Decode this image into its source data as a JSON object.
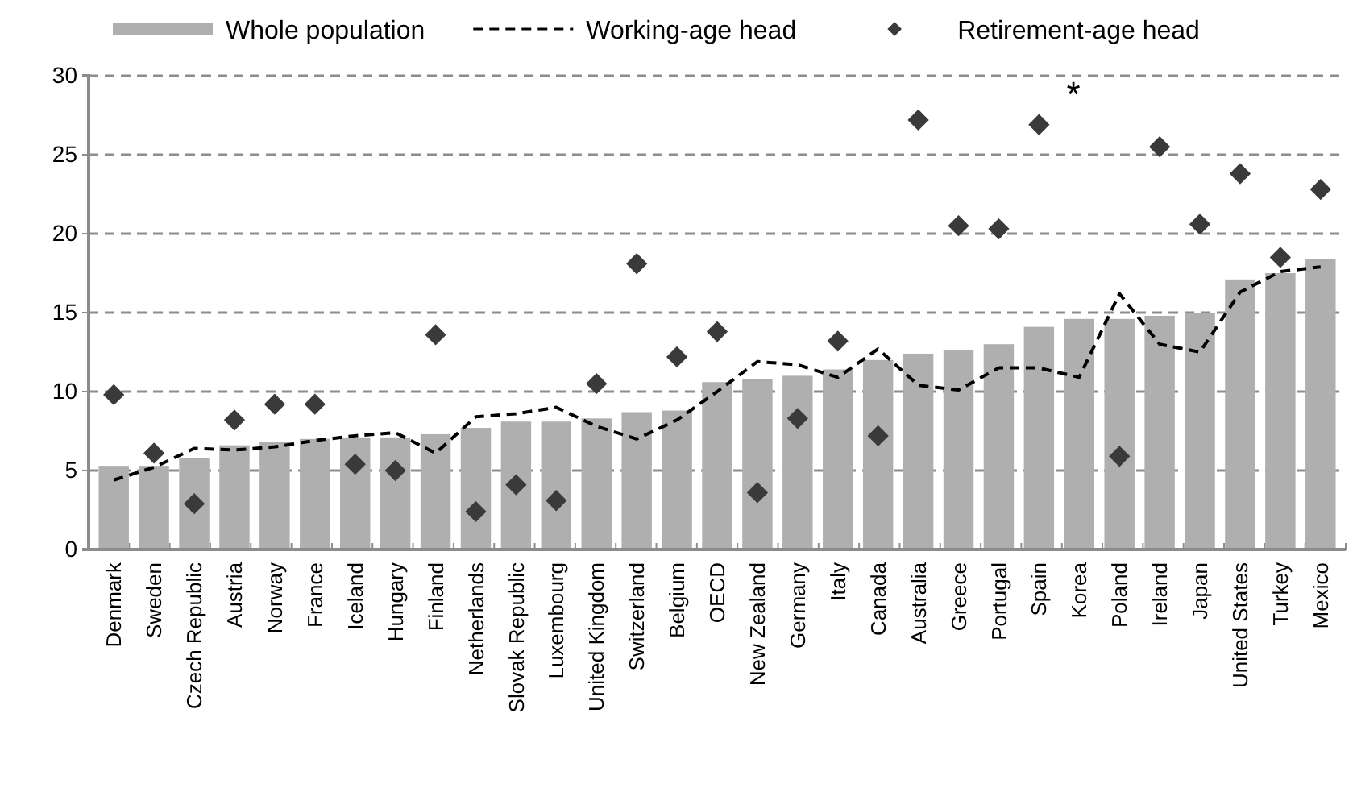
{
  "chart_data": {
    "type": "bar",
    "categories": [
      "Denmark",
      "Sweden",
      "Czech Republic",
      "Austria",
      "Norway",
      "France",
      "Iceland",
      "Hungary",
      "Finland",
      "Netherlands",
      "Slovak Republic",
      "Luxembourg",
      "United Kingdom",
      "Switzerland",
      "Belgium",
      "OECD",
      "New Zealand",
      "Germany",
      "Italy",
      "Canada",
      "Australia",
      "Greece",
      "Portugal",
      "Spain",
      "Korea",
      "Poland",
      "Ireland",
      "Japan",
      "United States",
      "Turkey",
      "Mexico"
    ],
    "series": [
      {
        "name": "Whole population",
        "color": "#afafaf",
        "values": [
          5.3,
          5.3,
          5.8,
          6.6,
          6.8,
          7.0,
          7.1,
          7.1,
          7.3,
          7.7,
          8.1,
          8.1,
          8.3,
          8.7,
          8.8,
          10.6,
          10.8,
          11.0,
          11.4,
          12.0,
          12.4,
          12.6,
          13.0,
          14.1,
          14.6,
          14.6,
          14.8,
          15.0,
          17.1,
          17.5,
          18.4
        ]
      },
      {
        "name": "Working-age head",
        "type": "line",
        "color": "#000000",
        "line_style": "dashed",
        "values": [
          4.4,
          5.2,
          6.4,
          6.3,
          6.5,
          6.9,
          7.2,
          7.4,
          6.1,
          8.4,
          8.6,
          9.0,
          7.8,
          7.0,
          8.2,
          10.0,
          11.9,
          11.7,
          10.9,
          12.7,
          10.4,
          10.1,
          11.5,
          11.5,
          10.9,
          16.2,
          13.0,
          12.5,
          16.3,
          17.6,
          17.9
        ]
      },
      {
        "name": "Retirement-age head",
        "type": "scatter",
        "color": "#3a3a3a",
        "marker": "diamond",
        "values": [
          9.8,
          6.1,
          2.9,
          8.2,
          9.2,
          9.2,
          5.4,
          5.0,
          13.6,
          2.4,
          4.1,
          3.1,
          10.5,
          18.1,
          12.2,
          13.8,
          3.6,
          8.3,
          13.2,
          7.2,
          27.2,
          20.5,
          20.3,
          26.9,
          null,
          5.9,
          25.5,
          20.6,
          23.8,
          18.5,
          22.8
        ]
      }
    ],
    "ylim": [
      0,
      30
    ],
    "yticks": [
      0,
      5,
      10,
      15,
      20,
      25,
      30
    ],
    "grid": "y",
    "legend": "top",
    "annotations": [
      "*"
    ]
  }
}
